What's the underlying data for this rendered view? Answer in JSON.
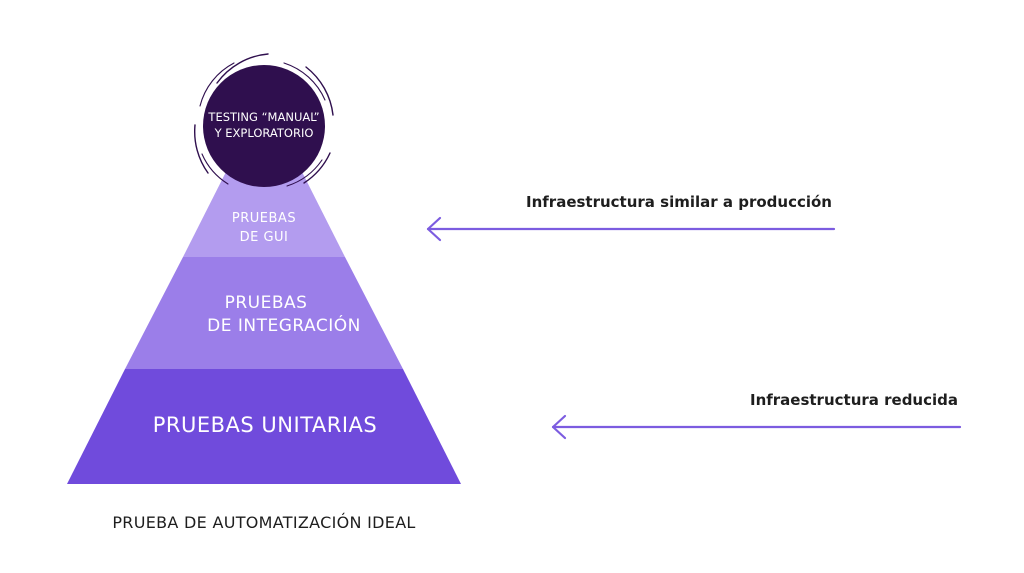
{
  "pyramid": {
    "top_circle": {
      "line1": "TESTING “MANUAL”",
      "line2": "Y EXPLORATORIO"
    },
    "tiers": {
      "gui": {
        "line1": "PRUEBAS",
        "line2": "DE GUI"
      },
      "integration": {
        "line1": "PRUEBAS",
        "line2": "DE INTEGRACIÓN"
      },
      "unit": {
        "label": "PRUEBAS UNITARIAS"
      }
    },
    "caption": "PRUEBA DE AUTOMATIZACIÓN IDEAL"
  },
  "arrows": {
    "top": {
      "label": "Infraestructura similar a producción"
    },
    "bottom": {
      "label": "Infraestructura reducida"
    }
  },
  "colors": {
    "circle": "#2f0f4e",
    "gui_tier": "#b39cef",
    "integration_tier": "#9b7ee9",
    "unit_tier": "#704bdc",
    "arrow": "#7c5ce0",
    "text_dark": "#1e1e1e"
  }
}
